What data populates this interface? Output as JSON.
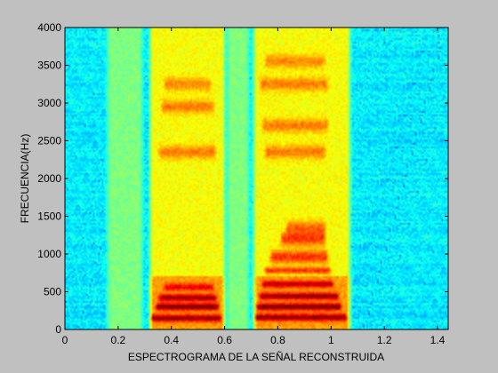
{
  "chart_data": {
    "type": "heatmap",
    "title": "",
    "xlabel": "ESPECTROGRAMA DE LA SEÑAL RECONSTRUIDA",
    "ylabel": "FRECUENCIA(Hz)",
    "xlim": [
      0,
      1.44
    ],
    "ylim": [
      0,
      4000
    ],
    "xticks": [
      0,
      0.2,
      0.4,
      0.6,
      0.8,
      1,
      1.2,
      1.4
    ],
    "xtick_labels": [
      "0",
      "0.2",
      "0.4",
      "0.6",
      "0.8",
      "1",
      "1.2",
      "1.4"
    ],
    "yticks": [
      0,
      500,
      1000,
      1500,
      2000,
      2500,
      3000,
      3500,
      4000
    ],
    "ytick_labels": [
      "0",
      "500",
      "1000",
      "1500",
      "2000",
      "2500",
      "3000",
      "3500",
      "4000"
    ],
    "colormap": "jet",
    "colors": {
      "figure_background": "#c0c0c0",
      "noise_floor": "#3cc8e6",
      "speech_energy": "#f0e040",
      "formant_peak": "#e02010"
    },
    "grid": false,
    "legend": "none",
    "segments": [
      {
        "start": 0.33,
        "end": 0.59,
        "level": "high",
        "formants": [
          {
            "freq": 300,
            "start": 0.35,
            "end": 0.57,
            "intensity": 1.0
          },
          {
            "freq": 420,
            "start": 0.36,
            "end": 0.56,
            "intensity": 0.85
          },
          {
            "freq": 150,
            "start": 0.33,
            "end": 0.58,
            "intensity": 0.9
          },
          {
            "freq": 560,
            "start": 0.38,
            "end": 0.55,
            "intensity": 0.6
          },
          {
            "freq": 2350,
            "start": 0.36,
            "end": 0.56,
            "intensity": 0.45
          },
          {
            "freq": 2950,
            "start": 0.37,
            "end": 0.55,
            "intensity": 0.45
          },
          {
            "freq": 3250,
            "start": 0.38,
            "end": 0.54,
            "intensity": 0.4
          }
        ]
      },
      {
        "start": 0.72,
        "end": 1.06,
        "level": "high",
        "formants": [
          {
            "freq": 300,
            "start": 0.73,
            "end": 1.03,
            "intensity": 1.0
          },
          {
            "freq": 440,
            "start": 0.74,
            "end": 1.02,
            "intensity": 0.9
          },
          {
            "freq": 160,
            "start": 0.72,
            "end": 1.05,
            "intensity": 0.9
          },
          {
            "freq": 600,
            "start": 0.75,
            "end": 1.0,
            "intensity": 0.75
          },
          {
            "freq": 780,
            "start": 0.76,
            "end": 0.99,
            "intensity": 0.7
          },
          {
            "freq": 960,
            "start": 0.78,
            "end": 0.98,
            "intensity": 0.7
          },
          {
            "freq": 1200,
            "start": 0.82,
            "end": 0.97,
            "intensity": 0.65
          },
          {
            "freq": 1350,
            "start": 0.84,
            "end": 0.97,
            "intensity": 0.5
          },
          {
            "freq": 2350,
            "start": 0.76,
            "end": 0.97,
            "intensity": 0.45
          },
          {
            "freq": 2700,
            "start": 0.75,
            "end": 0.98,
            "intensity": 0.45
          },
          {
            "freq": 3250,
            "start": 0.74,
            "end": 0.98,
            "intensity": 0.45
          },
          {
            "freq": 3550,
            "start": 0.76,
            "end": 0.97,
            "intensity": 0.4
          }
        ]
      },
      {
        "start": 0.17,
        "end": 0.28,
        "level": "low",
        "formants": []
      },
      {
        "start": 0.62,
        "end": 0.68,
        "level": "low",
        "formants": []
      }
    ]
  }
}
